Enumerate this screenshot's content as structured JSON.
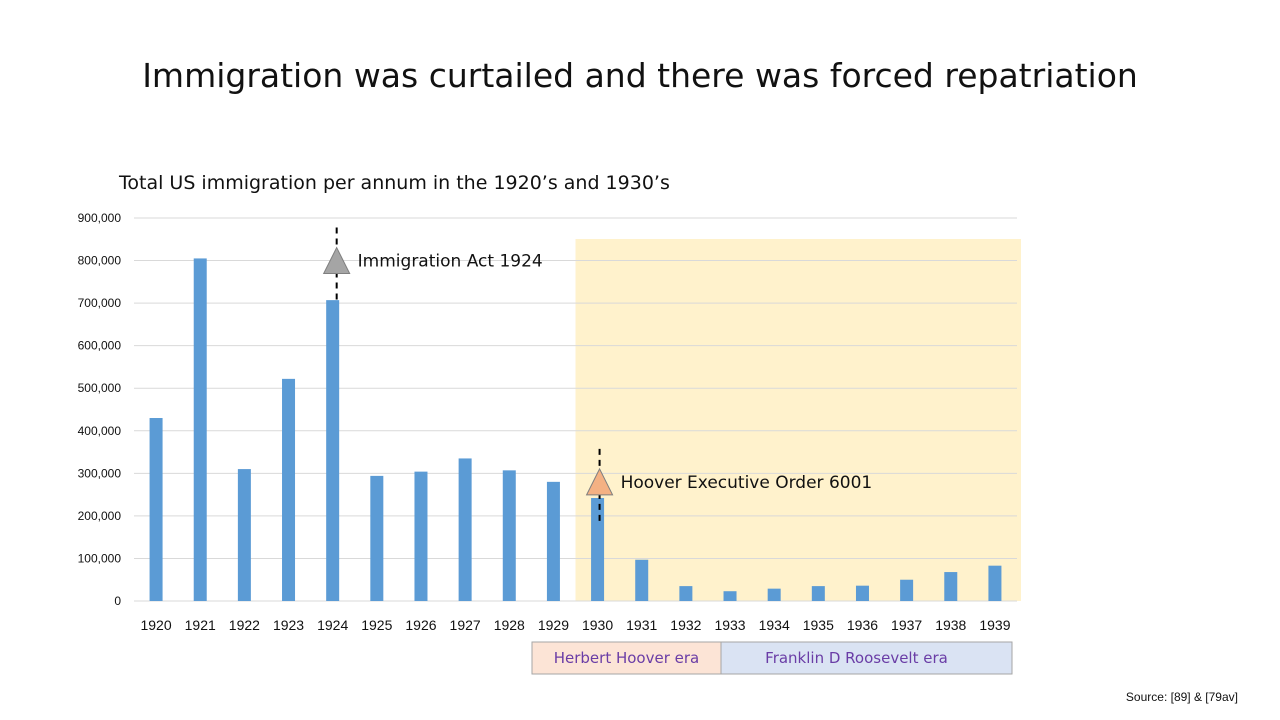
{
  "slide": {
    "title": "Immigration was curtailed and there was forced repatriation",
    "source": "Source: [89] & [79av]"
  },
  "chart_data": {
    "type": "bar",
    "title": "Total US immigration per annum in the 1920’s and 1930’s",
    "xlabel": "",
    "ylabel": "",
    "ylim": [
      0,
      900000
    ],
    "yticks": [
      0,
      100000,
      200000,
      300000,
      400000,
      500000,
      600000,
      700000,
      800000,
      900000
    ],
    "ytick_labels": [
      "0",
      "100,000",
      "200,000",
      "300,000",
      "400,000",
      "500,000",
      "600,000",
      "700,000",
      "800,000",
      "900,000"
    ],
    "grid": true,
    "bar_color": "#5b9bd5",
    "categories": [
      "1920",
      "1921",
      "1922",
      "1923",
      "1924",
      "1925",
      "1926",
      "1927",
      "1928",
      "1929",
      "1930",
      "1931",
      "1932",
      "1933",
      "1934",
      "1935",
      "1936",
      "1937",
      "1938",
      "1939"
    ],
    "values": [
      430000,
      805000,
      310000,
      522000,
      707000,
      294000,
      304000,
      335000,
      307000,
      280000,
      242000,
      97000,
      35000,
      23000,
      29000,
      35000,
      36000,
      50000,
      68000,
      83000
    ],
    "highlight": {
      "from": "1930",
      "to": "1939",
      "color": "#fff2cc"
    },
    "annotations": [
      {
        "label": "Immigration Act 1924",
        "at": "1924",
        "y": 800000,
        "marker": "triangle",
        "color": "#a5a5a5"
      },
      {
        "label": "Hoover Executive Order 6001",
        "at": "1930",
        "y": 280000,
        "marker": "triangle",
        "color": "#f4b183"
      }
    ],
    "eras": [
      {
        "label": "Herbert Hoover era",
        "color": "#fce4d6"
      },
      {
        "label": "Franklin D Roosevelt era",
        "color": "#dae3f3"
      }
    ]
  }
}
